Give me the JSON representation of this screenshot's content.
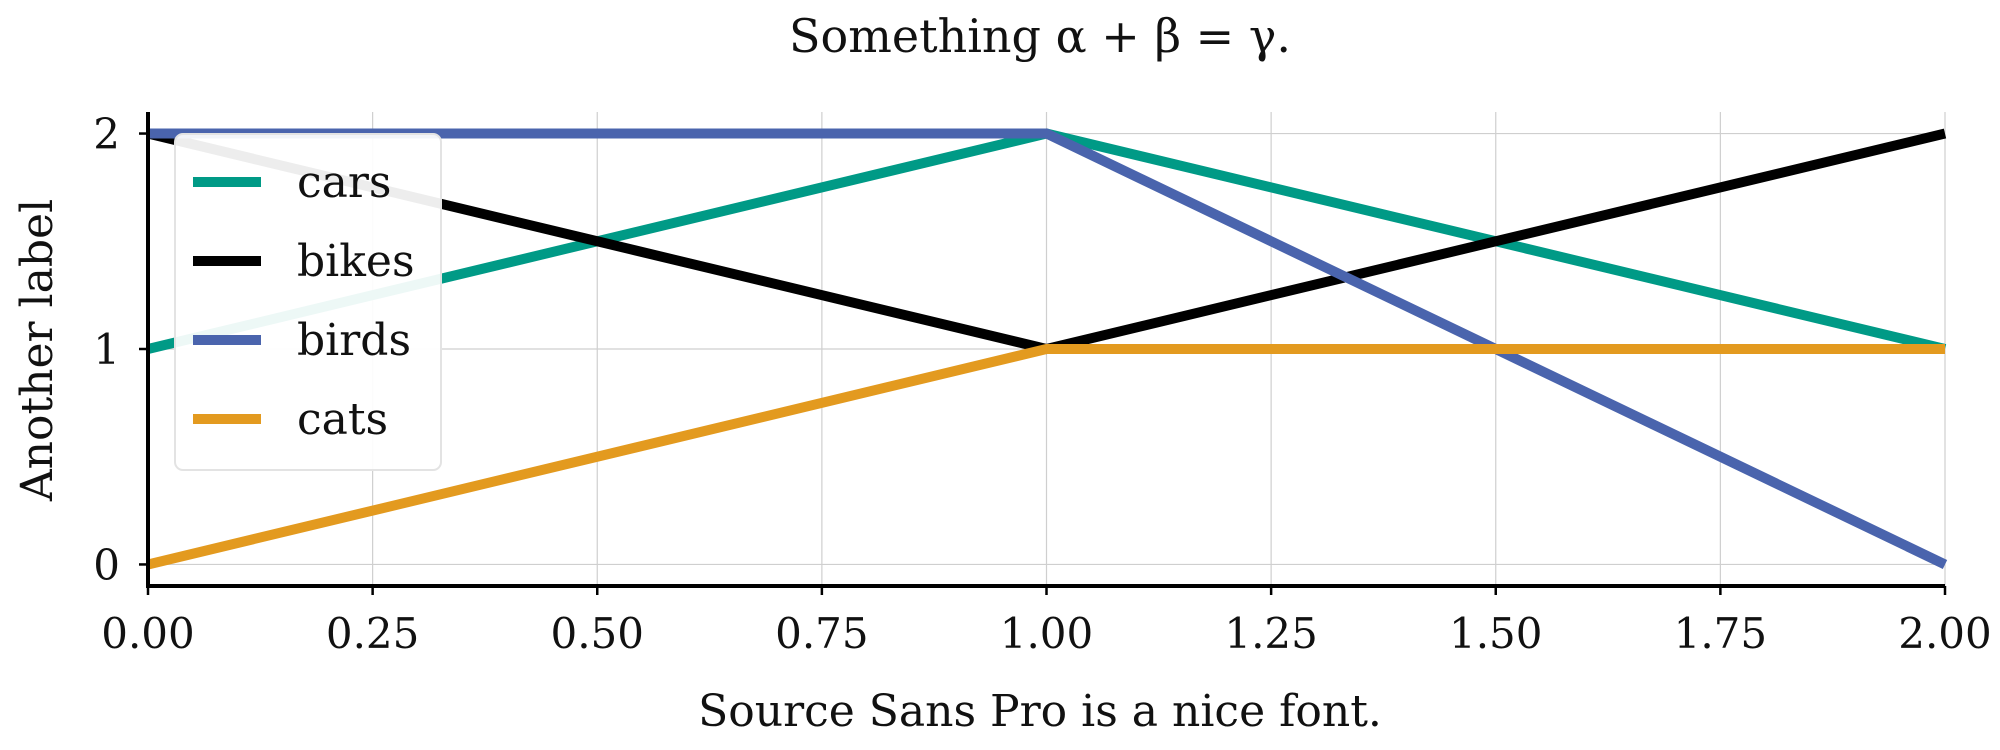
{
  "chart_data": {
    "type": "line",
    "title": "Something α + β = γ.",
    "xlabel": "Source Sans Pro is a nice font.",
    "ylabel": "Another label",
    "xlim": [
      0,
      2
    ],
    "ylim": [
      -0.1,
      2.1
    ],
    "xticks": [
      0,
      0.25,
      0.5,
      0.75,
      1,
      1.25,
      1.5,
      1.75,
      2
    ],
    "xtick_labels": [
      "0.00",
      "0.25",
      "0.50",
      "0.75",
      "1.00",
      "1.25",
      "1.50",
      "1.75",
      "2.00"
    ],
    "yticks": [
      0,
      1,
      2
    ],
    "ytick_labels": [
      "0",
      "1",
      "2"
    ],
    "grid": true,
    "legend_position": "upper-left",
    "series": [
      {
        "name": "cars",
        "color": "#009a86",
        "x": [
          0,
          1,
          2
        ],
        "y": [
          1,
          2,
          1
        ]
      },
      {
        "name": "bikes",
        "color": "#000000",
        "x": [
          0,
          1,
          2
        ],
        "y": [
          2,
          1,
          2
        ]
      },
      {
        "name": "birds",
        "color": "#4a64ad",
        "x": [
          0,
          1,
          2
        ],
        "y": [
          2,
          2,
          0
        ]
      },
      {
        "name": "cats",
        "color": "#e39a1f",
        "x": [
          0,
          1,
          2
        ],
        "y": [
          0,
          1,
          1
        ]
      }
    ]
  }
}
